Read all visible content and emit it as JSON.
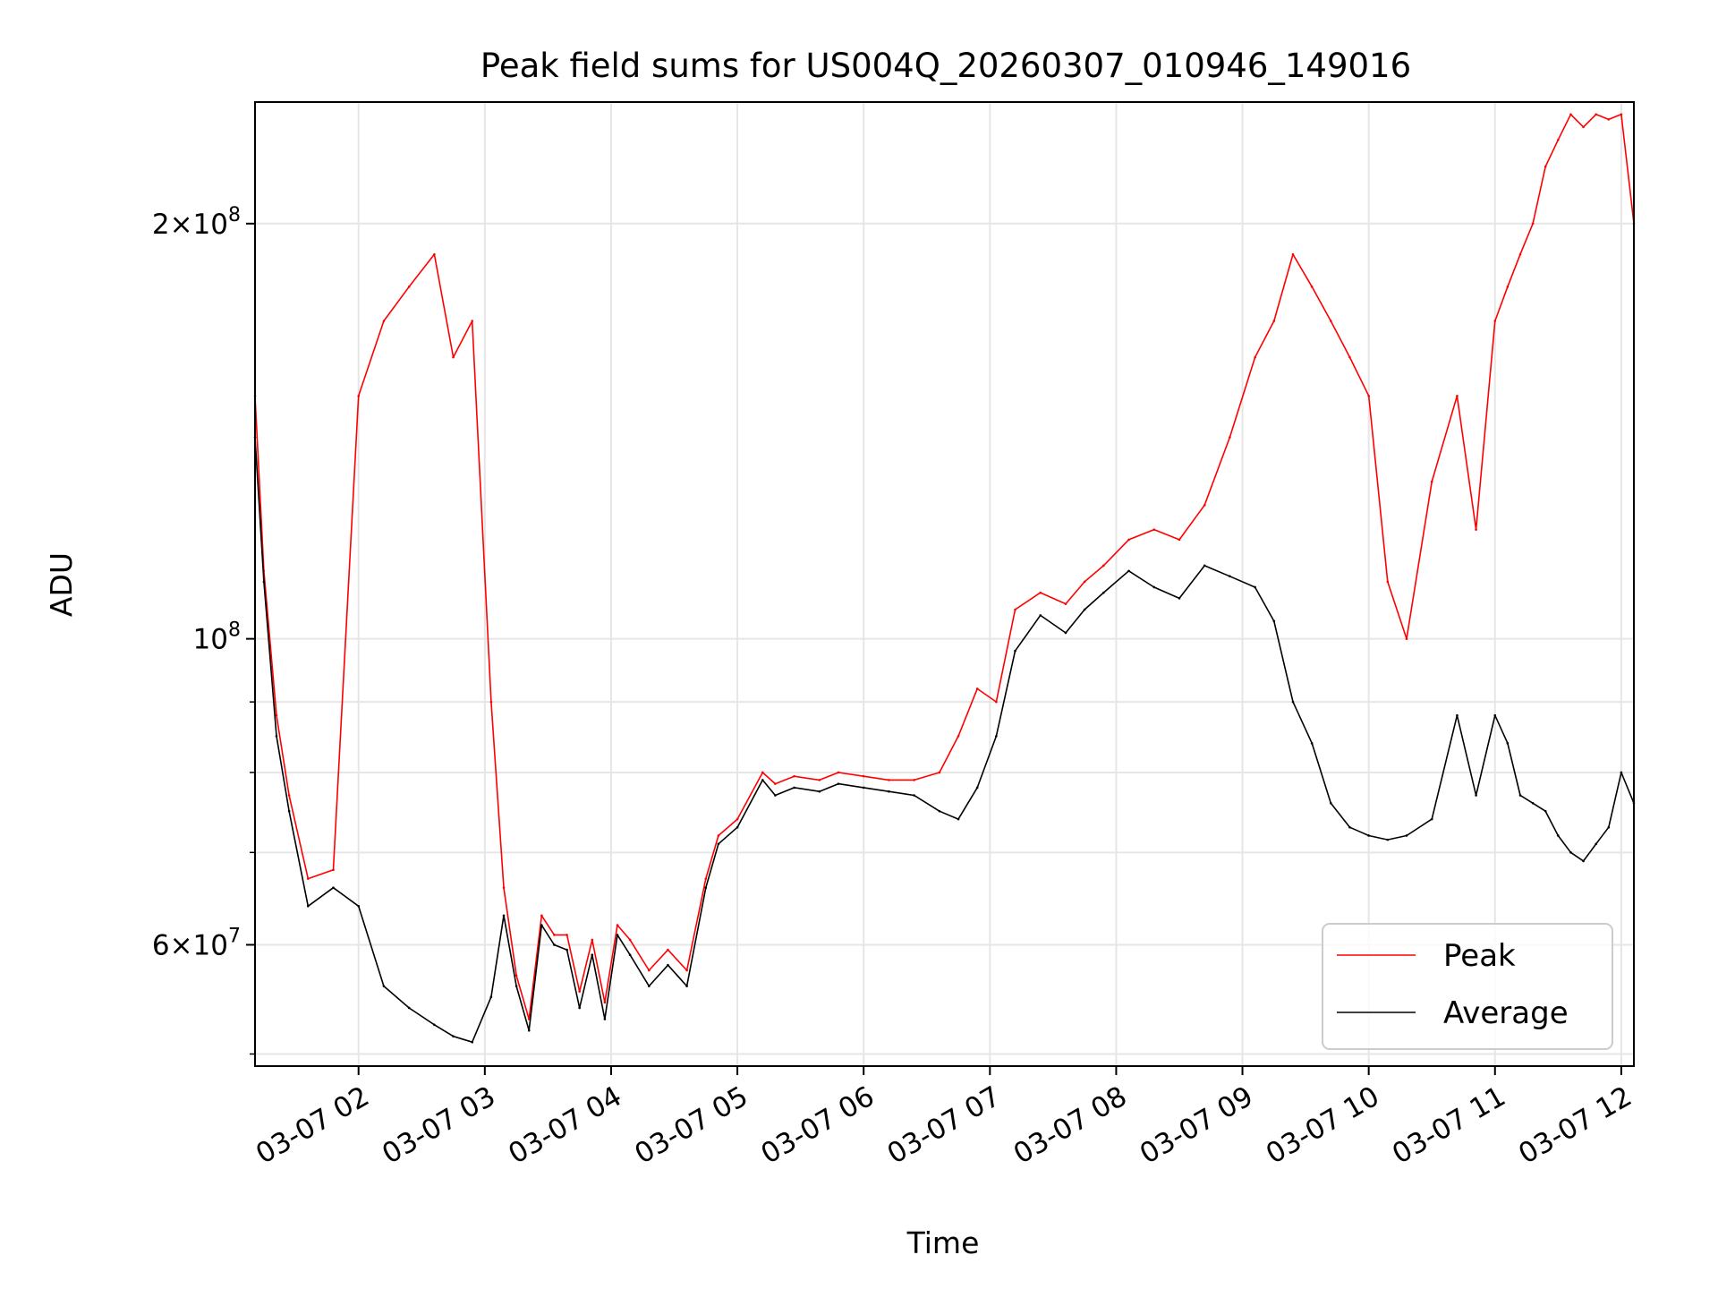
{
  "chart_data": {
    "type": "line",
    "title": "Peak field sums for US004Q_20260307_010946_149016",
    "xlabel": "Time",
    "ylabel": "ADU",
    "yscale": "log",
    "ylim": [
      49000000,
      245000000
    ],
    "xlim_hours": [
      1.18,
      12.1
    ],
    "grid": true,
    "legend_position": "lower-right",
    "x_ticks": [
      {
        "label": "03-07 02",
        "hour": 2
      },
      {
        "label": "03-07 03",
        "hour": 3
      },
      {
        "label": "03-07 04",
        "hour": 4
      },
      {
        "label": "03-07 05",
        "hour": 5
      },
      {
        "label": "03-07 06",
        "hour": 6
      },
      {
        "label": "03-07 07",
        "hour": 7
      },
      {
        "label": "03-07 08",
        "hour": 8
      },
      {
        "label": "03-07 09",
        "hour": 9
      },
      {
        "label": "03-07 10",
        "hour": 10
      },
      {
        "label": "03-07 11",
        "hour": 11
      },
      {
        "label": "03-07 12",
        "hour": 12
      }
    ],
    "y_major_ticks": [
      {
        "base": "6",
        "exp": "7",
        "value": 60000000
      },
      {
        "base": "",
        "exp": "8",
        "value": 100000000
      },
      {
        "base": "2",
        "exp": "8",
        "value": 200000000
      }
    ],
    "y_minor_ticks": [
      50000000,
      70000000,
      80000000,
      90000000
    ],
    "series": [
      {
        "name": "Average",
        "color": "#000000",
        "x_hours": [
          1.18,
          1.25,
          1.35,
          1.45,
          1.6,
          1.8,
          2.0,
          2.2,
          2.4,
          2.6,
          2.75,
          2.9,
          3.05,
          3.15,
          3.25,
          3.35,
          3.45,
          3.55,
          3.65,
          3.75,
          3.85,
          3.95,
          4.05,
          4.15,
          4.3,
          4.45,
          4.6,
          4.75,
          4.85,
          5.0,
          5.2,
          5.3,
          5.45,
          5.65,
          5.8,
          6.0,
          6.2,
          6.4,
          6.6,
          6.75,
          6.9,
          7.05,
          7.2,
          7.4,
          7.6,
          7.75,
          7.9,
          8.1,
          8.3,
          8.5,
          8.7,
          8.9,
          9.1,
          9.25,
          9.4,
          9.55,
          9.7,
          9.85,
          10.0,
          10.15,
          10.3,
          10.5,
          10.7,
          10.85,
          11.0,
          11.1,
          11.2,
          11.3,
          11.4,
          11.5,
          11.6,
          11.7,
          11.8,
          11.9,
          12.0,
          12.1
        ],
        "values": [
          140000000,
          110000000,
          85000000,
          75000000,
          64000000,
          66000000,
          64000000,
          56000000,
          54000000,
          52500000,
          51500000,
          51000000,
          55000000,
          63000000,
          56000000,
          52000000,
          62000000,
          60000000,
          59500000,
          54000000,
          59000000,
          53000000,
          61000000,
          59000000,
          56000000,
          58000000,
          56000000,
          66000000,
          71000000,
          73000000,
          79000000,
          77000000,
          78000000,
          77500000,
          78500000,
          78000000,
          77500000,
          77000000,
          75000000,
          74000000,
          78000000,
          85000000,
          98000000,
          104000000,
          101000000,
          105000000,
          108000000,
          112000000,
          109000000,
          107000000,
          113000000,
          111000000,
          109000000,
          103000000,
          90000000,
          84000000,
          76000000,
          73000000,
          72000000,
          71500000,
          72000000,
          74000000,
          88000000,
          77000000,
          88000000,
          84000000,
          77000000,
          76000000,
          75000000,
          72000000,
          70000000,
          69000000,
          71000000,
          73000000,
          80000000,
          76000000
        ]
      },
      {
        "name": "Peak",
        "color": "#ff0000",
        "x_hours": [
          1.18,
          1.25,
          1.35,
          1.45,
          1.6,
          1.8,
          2.0,
          2.2,
          2.4,
          2.6,
          2.75,
          2.9,
          3.05,
          3.15,
          3.25,
          3.35,
          3.45,
          3.55,
          3.65,
          3.75,
          3.85,
          3.95,
          4.05,
          4.15,
          4.3,
          4.45,
          4.6,
          4.75,
          4.85,
          5.0,
          5.2,
          5.3,
          5.45,
          5.65,
          5.8,
          6.0,
          6.2,
          6.4,
          6.6,
          6.75,
          6.9,
          7.05,
          7.2,
          7.4,
          7.6,
          7.75,
          7.9,
          8.1,
          8.3,
          8.5,
          8.7,
          8.9,
          9.1,
          9.25,
          9.4,
          9.55,
          9.7,
          9.85,
          10.0,
          10.15,
          10.3,
          10.5,
          10.7,
          10.85,
          11.0,
          11.1,
          11.2,
          11.3,
          11.4,
          11.5,
          11.6,
          11.7,
          11.8,
          11.9,
          12.0,
          12.1
        ],
        "values": [
          150000000,
          112000000,
          88000000,
          77000000,
          67000000,
          68000000,
          150000000,
          170000000,
          180000000,
          190000000,
          160000000,
          170000000,
          90000000,
          66000000,
          57000000,
          53000000,
          63000000,
          61000000,
          61000000,
          55500000,
          60500000,
          54500000,
          62000000,
          60500000,
          57500000,
          59500000,
          57500000,
          67000000,
          72000000,
          74000000,
          80000000,
          78500000,
          79500000,
          79000000,
          80000000,
          79500000,
          79000000,
          79000000,
          80000000,
          85000000,
          92000000,
          90000000,
          105000000,
          108000000,
          106000000,
          110000000,
          113000000,
          118000000,
          120000000,
          118000000,
          125000000,
          140000000,
          160000000,
          170000000,
          190000000,
          180000000,
          170000000,
          160000000,
          150000000,
          110000000,
          100000000,
          130000000,
          150000000,
          120000000,
          170000000,
          180000000,
          190000000,
          200000000,
          220000000,
          230000000,
          240000000,
          235000000,
          240000000,
          238000000,
          240000000,
          200000000
        ]
      }
    ]
  }
}
